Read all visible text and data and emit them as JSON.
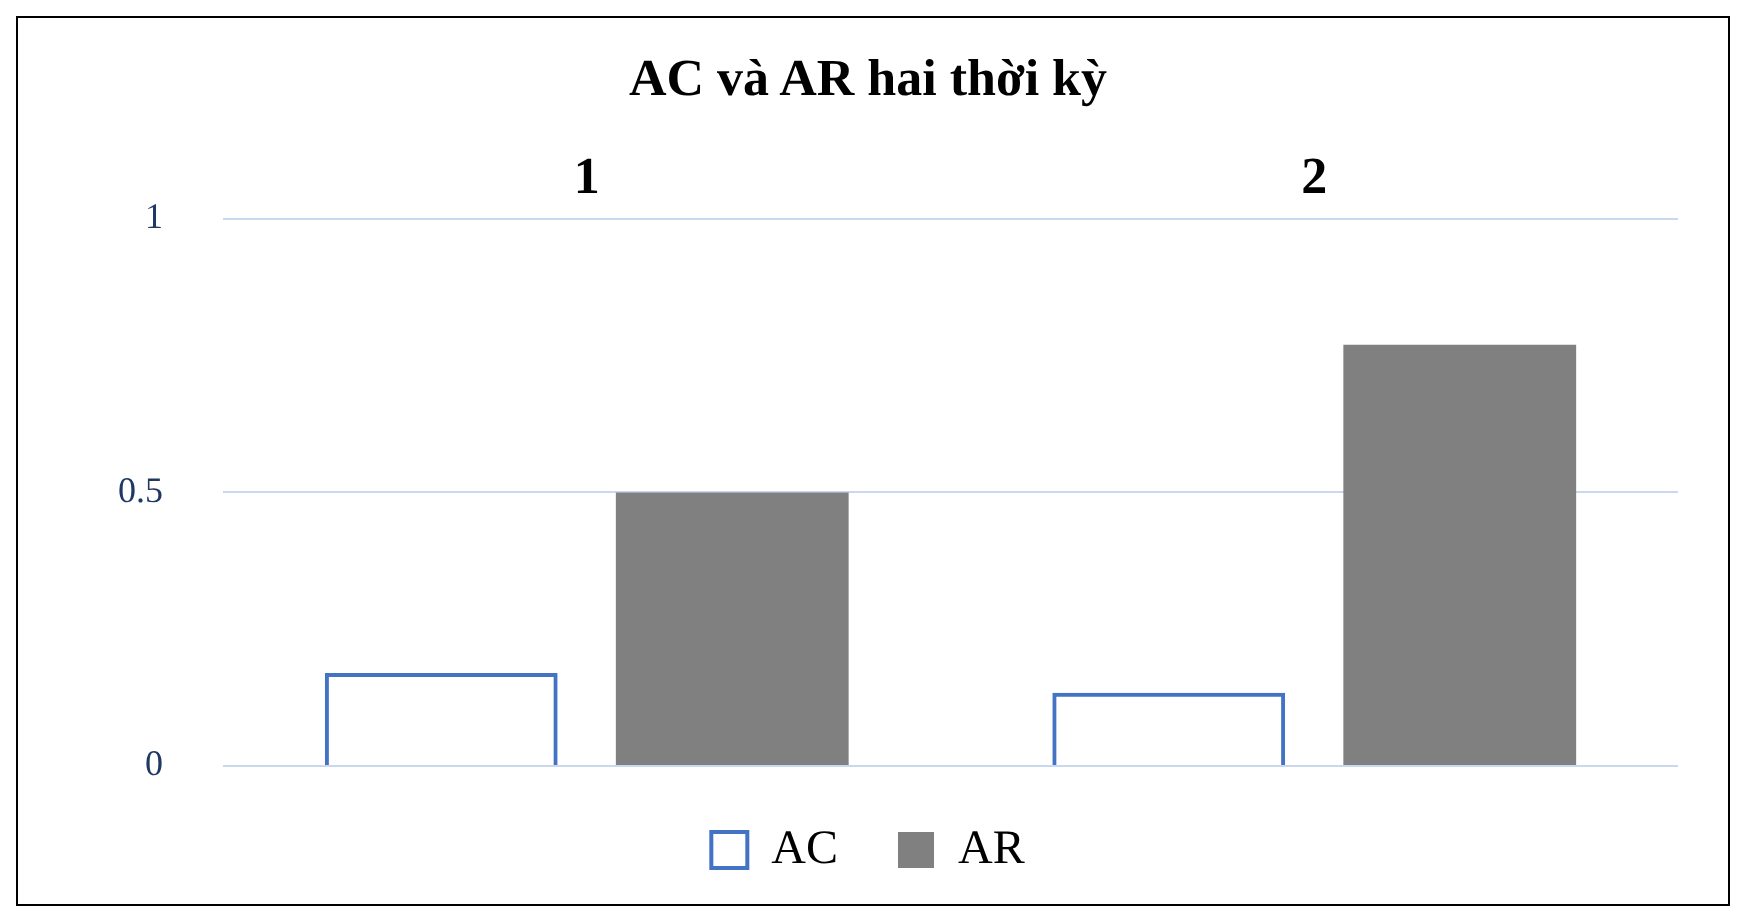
{
  "chart_data": {
    "type": "bar",
    "title": "AC và AR hai thời kỳ",
    "categories": [
      "1",
      "2"
    ],
    "series": [
      {
        "name": "AC",
        "color": "#4472c4",
        "values": [
          0.17,
          0.134
        ]
      },
      {
        "name": "AR",
        "color": "#808080",
        "values": [
          0.5,
          0.77
        ]
      }
    ],
    "ylim": [
      0,
      1
    ],
    "yticks": [
      0,
      0.5,
      1
    ],
    "grid": "y",
    "legend": "bottom"
  }
}
